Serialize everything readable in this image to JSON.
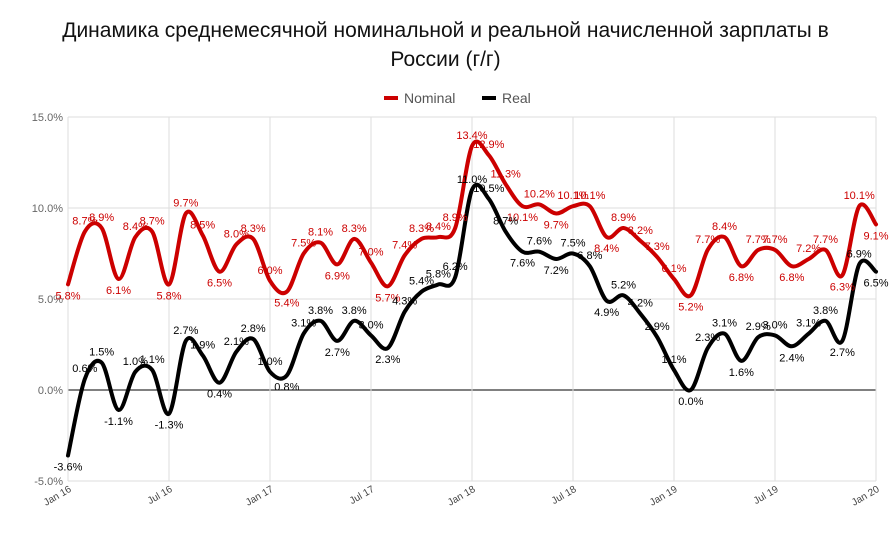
{
  "title_lines": [
    "Динамика среднемесячной номинальной и реальной начисленной зарплаты в",
    "России (г/г)"
  ],
  "chart_data": {
    "type": "line",
    "x": [
      "2016-01",
      "2016-02",
      "2016-03",
      "2016-04",
      "2016-05",
      "2016-06",
      "2016-07",
      "2016-08",
      "2016-09",
      "2016-10",
      "2016-11",
      "2016-12",
      "2017-01",
      "2017-02",
      "2017-03",
      "2017-04",
      "2017-05",
      "2017-06",
      "2017-07",
      "2017-08",
      "2017-09",
      "2017-10",
      "2017-11",
      "2017-12",
      "2018-01",
      "2018-02",
      "2018-03",
      "2018-04",
      "2018-05",
      "2018-06",
      "2018-07",
      "2018-08",
      "2018-09",
      "2018-10",
      "2018-11",
      "2018-12",
      "2019-01",
      "2019-02",
      "2019-03",
      "2019-04",
      "2019-05",
      "2019-06",
      "2019-07",
      "2019-08",
      "2019-09",
      "2019-10",
      "2019-11",
      "2019-12",
      "2020-01"
    ],
    "x_tick_labels": [
      "Jan 16",
      "Jul 16",
      "Jan 17",
      "Jul 17",
      "Jan 18",
      "Jul 18",
      "Jan 19",
      "Jul 19",
      "Jan 20"
    ],
    "y_tick_labels": [
      "-5.0%",
      "0.0%",
      "5.0%",
      "10.0%",
      "15.0%"
    ],
    "ylim": [
      -5,
      15
    ],
    "grid": true,
    "legend_position": "top-center",
    "series": [
      {
        "name": "Nominal",
        "color": "#cc0000",
        "values": [
          5.8,
          8.7,
          8.9,
          6.1,
          8.4,
          8.7,
          5.8,
          9.7,
          8.5,
          6.5,
          8.0,
          8.3,
          6.0,
          5.4,
          7.5,
          8.1,
          6.9,
          8.3,
          7.0,
          5.7,
          7.4,
          8.3,
          8.4,
          8.9,
          13.4,
          12.9,
          11.3,
          10.1,
          10.2,
          9.7,
          10.1,
          10.1,
          8.4,
          8.9,
          8.2,
          7.3,
          6.1,
          5.2,
          7.7,
          8.4,
          6.8,
          7.7,
          7.7,
          6.8,
          7.2,
          7.7,
          6.3,
          10.1,
          9.1
        ],
        "labels": [
          "5.8%",
          "8.7%",
          "8.9%",
          "6.1%",
          "8.4%",
          "8.7%",
          "5.8%",
          "9.7%",
          "8.5%",
          "6.5%",
          "8.0%",
          "8.3%",
          "6.0%",
          "5.4%",
          "7.5%",
          "8.1%",
          "6.9%",
          "8.3%",
          "7.0%",
          "5.7%",
          "7.4%",
          "8.3%",
          "8.4%",
          "8.9%",
          "13.4%",
          "12.9%",
          "11.3%",
          "10.1%",
          "10.2%",
          "9.7%",
          "10.1%",
          "10.1%",
          "8.4%",
          "8.9%",
          "8.2%",
          "7.3%",
          "6.1%",
          "5.2%",
          "7.7%",
          "8.4%",
          "6.8%",
          "7.7%",
          "7.7%",
          "6.8%",
          "7.2%",
          "7.7%",
          "6.3%",
          "10.1%",
          "9.1%"
        ]
      },
      {
        "name": "Real",
        "color": "#000000",
        "values": [
          -3.6,
          0.6,
          1.5,
          -1.1,
          1.0,
          1.1,
          -1.3,
          2.7,
          1.9,
          0.4,
          2.1,
          2.8,
          1.0,
          0.8,
          3.1,
          3.8,
          2.7,
          3.8,
          3.0,
          2.3,
          4.3,
          5.4,
          5.8,
          6.2,
          11.0,
          10.5,
          8.7,
          7.6,
          7.6,
          7.2,
          7.5,
          6.8,
          4.9,
          5.2,
          4.2,
          2.9,
          1.1,
          0.0,
          2.3,
          3.1,
          1.6,
          2.9,
          3.0,
          2.4,
          3.1,
          3.8,
          2.7,
          6.9,
          6.5
        ],
        "labels": [
          "-3.6%",
          "0.6%",
          "1.5%",
          "-1.1%",
          "1.0%",
          "1.1%",
          "-1.3%",
          "2.7%",
          "1.9%",
          "0.4%",
          "2.1%",
          "2.8%",
          "1.0%",
          "0.8%",
          "3.1%",
          "3.8%",
          "2.7%",
          "3.8%",
          "3.0%",
          "2.3%",
          "4.3%",
          "5.4%",
          "5.8%",
          "6.2%",
          "11.0%",
          "10.5%",
          "8.7%",
          "7.6%",
          "7.6%",
          "7.2%",
          "7.5%",
          "6.8%",
          "4.9%",
          "5.2%",
          "4.2%",
          "2.9%",
          "1.1%",
          "0.0%",
          "2.3%",
          "3.1%",
          "1.6%",
          "2.9%",
          "3.0%",
          "2.4%",
          "3.1%",
          "3.8%",
          "2.7%",
          "6.9%",
          "6.5%"
        ]
      }
    ]
  }
}
